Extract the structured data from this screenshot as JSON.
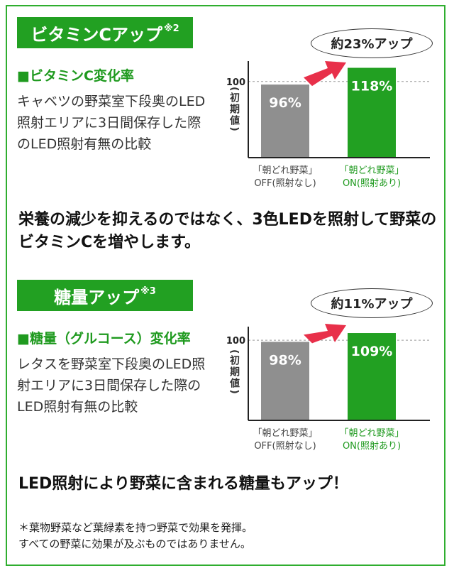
{
  "section1": {
    "banner": "ビタミンCアップ",
    "banner_note": "※2",
    "subhead": "■ビタミンC変化率",
    "desc": "キャベツの野菜室下段奥のLED照射エリアに3日間保存した際のLED照射有無の比較",
    "bubble": "約23%アップ"
  },
  "section2": {
    "banner": "糖量アップ",
    "banner_note": "※3",
    "subhead": "■糖量（グルコース）変化率",
    "desc": "レタスを野菜室下段奥のLED照射エリアに3日間保存した際のLED照射有無の比較",
    "bubble": "約11%アップ"
  },
  "statement1": "栄養の減少を抑えるのではなく、3色LEDを照射して野菜のビタミンCを増やします。",
  "statement2": "LED照射により野菜に含まれる糖量もアップ！",
  "footnote1": "＊葉物野菜など葉緑素を持つ野菜で効果を発揮。",
  "footnote2": "すべての野菜に効果が及ぶものではありません。",
  "colors": {
    "green": "#22a022",
    "gray": "#8f8f8f",
    "arrow": "#e8304a"
  },
  "chart_data": [
    {
      "type": "bar",
      "categories": [
        "「朝どれ野菜」OFF(照射なし)",
        "「朝どれ野菜」ON(照射あり)"
      ],
      "category_lines": [
        [
          "「朝どれ野菜」",
          "OFF(照射なし)"
        ],
        [
          "「朝どれ野菜」",
          "ON(照射あり)"
        ]
      ],
      "values": [
        96,
        118
      ],
      "value_labels": [
        "96%",
        "118%"
      ],
      "ylabel": "(初期値)",
      "reference_line": 100,
      "reference_label": "100",
      "ylim": [
        0,
        125
      ]
    },
    {
      "type": "bar",
      "categories": [
        "「朝どれ野菜」OFF(照射なし)",
        "「朝どれ野菜」ON(照射あり)"
      ],
      "category_lines": [
        [
          "「朝どれ野菜」",
          "OFF(照射なし)"
        ],
        [
          "「朝どれ野菜」",
          "ON(照射あり)"
        ]
      ],
      "values": [
        98,
        109
      ],
      "value_labels": [
        "98%",
        "109%"
      ],
      "ylabel": "(初期値)",
      "reference_line": 100,
      "reference_label": "100",
      "ylim": [
        0,
        117
      ]
    }
  ]
}
